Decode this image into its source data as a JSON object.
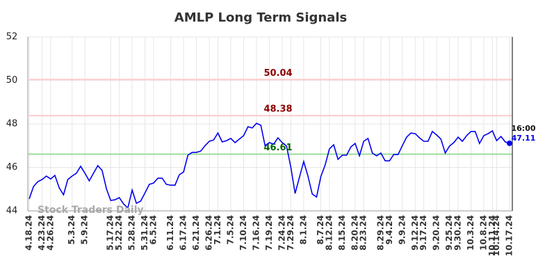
{
  "chart_data": {
    "type": "line",
    "title": "AMLP Long Term Signals",
    "categories": [
      "4.18.24",
      null,
      null,
      "4.23.24",
      null,
      "4.26.24",
      null,
      null,
      null,
      null,
      "5.3.24",
      null,
      null,
      "5.9.24",
      null,
      null,
      null,
      null,
      null,
      "5.17.24",
      null,
      "5.22.24",
      null,
      null,
      "5.28.24",
      null,
      null,
      "5.31.24",
      null,
      "6.5.24",
      null,
      null,
      null,
      "6.11.24",
      null,
      null,
      "6.17.24",
      null,
      null,
      "6.21.24",
      null,
      null,
      "6.26.24",
      null,
      "7.1.24",
      null,
      null,
      "7.5.24",
      null,
      null,
      "7.10.24",
      null,
      null,
      "7.16.24",
      null,
      null,
      "7.19.24",
      null,
      null,
      "7.24.24",
      null,
      "7.29.24",
      null,
      null,
      "8.1.24",
      null,
      null,
      null,
      "8.7.24",
      null,
      "8.12.24",
      null,
      null,
      "8.15.24",
      null,
      null,
      "8.20.24",
      null,
      "8.23.24",
      null,
      null,
      null,
      "8.29.24",
      null,
      "9.4.24",
      null,
      null,
      "9.9.24",
      null,
      null,
      "9.12.24",
      null,
      "9.17.24",
      null,
      null,
      "9.20.24",
      null,
      null,
      "9.25.24",
      null,
      "9.30.24",
      null,
      null,
      "10.3.24",
      null,
      null,
      "10.8.24",
      null,
      "10.11.24",
      "10.14.24",
      null,
      null,
      "10.17.24"
    ],
    "values": [
      44.55,
      45.12,
      45.34,
      45.44,
      45.6,
      45.47,
      45.63,
      45.06,
      44.74,
      45.44,
      45.6,
      45.73,
      46.05,
      45.73,
      45.38,
      45.73,
      46.08,
      45.86,
      45.02,
      44.48,
      44.51,
      44.61,
      44.32,
      44.13,
      44.96,
      44.35,
      44.45,
      44.83,
      45.22,
      45.28,
      45.5,
      45.5,
      45.22,
      45.18,
      45.18,
      45.66,
      45.79,
      46.56,
      46.69,
      46.69,
      46.75,
      47.0,
      47.2,
      47.26,
      47.58,
      47.17,
      47.23,
      47.33,
      47.14,
      47.3,
      47.46,
      47.87,
      47.81,
      48.03,
      47.94,
      47.0,
      47.14,
      47.07,
      47.36,
      47.14,
      46.98,
      46.02,
      44.8,
      45.54,
      46.27,
      45.6,
      44.77,
      44.64,
      45.57,
      46.11,
      46.85,
      47.04,
      46.37,
      46.56,
      46.56,
      46.94,
      47.1,
      46.53,
      47.2,
      47.33,
      46.66,
      46.53,
      46.66,
      46.3,
      46.3,
      46.59,
      46.59,
      47.0,
      47.39,
      47.58,
      47.55,
      47.36,
      47.2,
      47.2,
      47.65,
      47.49,
      47.3,
      46.66,
      46.98,
      47.14,
      47.39,
      47.2,
      47.46,
      47.65,
      47.65,
      47.1,
      47.46,
      47.55,
      47.68,
      47.23,
      47.42,
      47.17,
      47.11
    ],
    "color": "#0000ee",
    "ylim": [
      44,
      52
    ],
    "yticks": [
      44,
      46,
      48,
      50,
      52
    ],
    "grid": true,
    "levels": [
      {
        "value": 50.04,
        "color": "#ffcccc",
        "label_color": "#8b0000"
      },
      {
        "value": 48.38,
        "color": "#ffcccc",
        "label_color": "#8b0000"
      },
      {
        "value": 46.61,
        "color": "#99dd99",
        "label_color": "#006400"
      }
    ],
    "last_time": "16:00",
    "watermark": "Stock Traders Daily"
  }
}
